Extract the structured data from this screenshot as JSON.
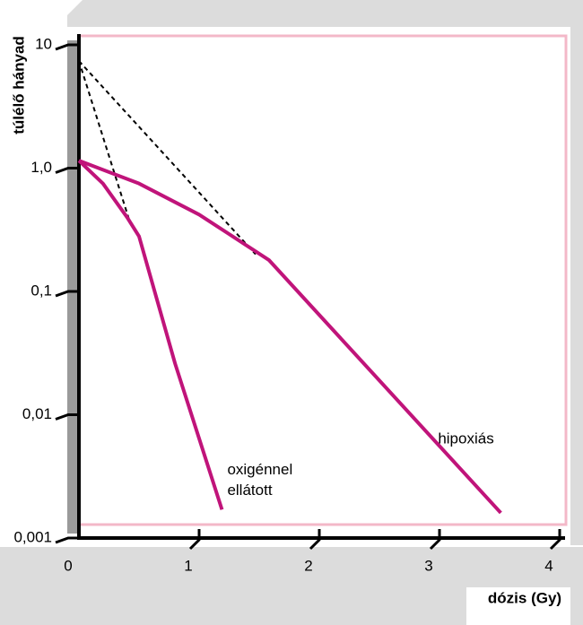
{
  "chart_data": {
    "type": "line",
    "ylabel": "túlélő hányad",
    "xlabel": "dózis (Gy)",
    "log_y": true,
    "xlim": [
      0,
      4
    ],
    "xticks": [
      0,
      1,
      2,
      3,
      4
    ],
    "ylim": [
      0.001,
      10
    ],
    "yticks": [
      10,
      {
        "value": 1,
        "label": "1,0"
      },
      {
        "value": 0.1,
        "label": "0,1"
      },
      {
        "value": 0.01,
        "label": "0,01"
      },
      {
        "value": 0.001,
        "label": "0,001"
      }
    ],
    "series": [
      {
        "label_lines": [
          "oxigénnel",
          "ellátott"
        ],
        "color": "#c0147a",
        "x": [
          0,
          0.2,
          0.4,
          0.5,
          0.8,
          1.19
        ],
        "values": [
          1.15,
          0.75,
          0.4,
          0.28,
          0.026,
          0.0017
        ]
      },
      {
        "label_lines": [
          "hipoxiás"
        ],
        "color": "#c0147a",
        "x": [
          0,
          0.5,
          1.0,
          1.58,
          3.51
        ],
        "values": [
          1.15,
          0.75,
          0.42,
          0.18,
          0.0016
        ]
      }
    ],
    "extrapolations": [
      {
        "color": "#000000",
        "x": [
          0,
          0.43
        ],
        "values": [
          7.4,
          0.35
        ]
      },
      {
        "color": "#000000",
        "x": [
          0,
          1.47
        ],
        "values": [
          7.4,
          0.2
        ]
      }
    ]
  }
}
